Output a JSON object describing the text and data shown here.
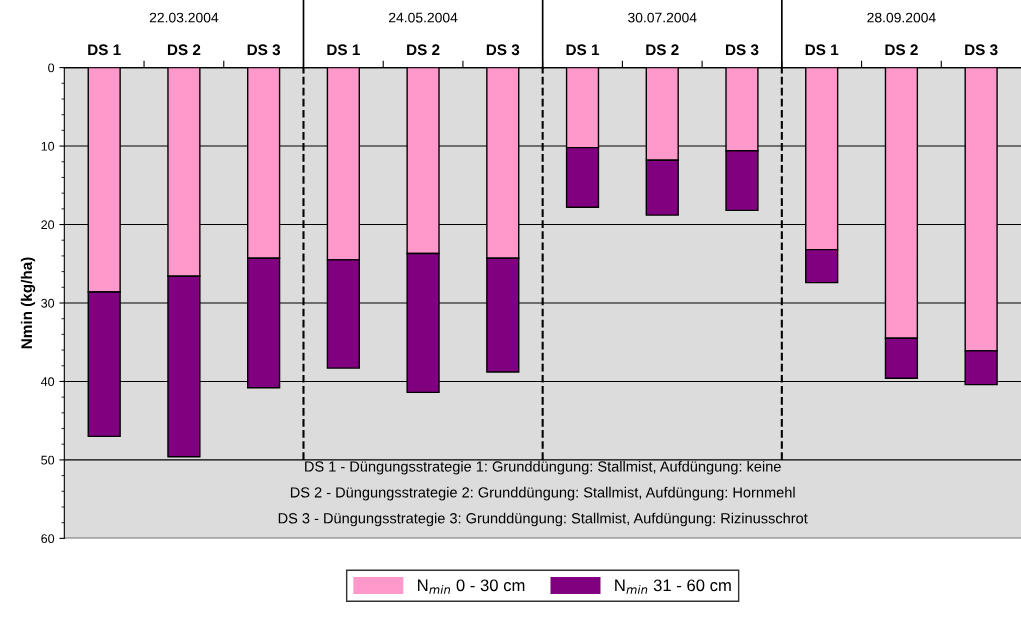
{
  "chart_data": {
    "type": "bar",
    "stacked": true,
    "ylabel": "Nmin (kg/ha)",
    "categories": [
      "DS 1",
      "DS 2",
      "DS 3",
      "DS 1",
      "DS 2",
      "DS 3",
      "DS 1",
      "DS 2",
      "DS 3",
      "DS 1",
      "DS 2",
      "DS 3"
    ],
    "series": [
      {
        "name": "N$_{min}$ 0 - 30 cm",
        "color": "#ff99cc",
        "values": [
          28.6,
          26.6,
          24.3,
          24.5,
          23.7,
          24.3,
          10.2,
          11.8,
          10.6,
          23.2,
          34.5,
          36.1
        ]
      },
      {
        "name": "N$_{min}$ 31 - 60 cm",
        "color": "#800080",
        "values": [
          18.4,
          23.0,
          16.5,
          13.8,
          17.7,
          14.5,
          7.6,
          7.0,
          7.6,
          4.2,
          5.1,
          4.3
        ]
      }
    ],
    "ylim": [
      60,
      0
    ],
    "yticks": [
      0,
      10,
      20,
      30,
      40,
      50,
      60
    ],
    "grid": "y",
    "legend": "bottom",
    "annotations": [
      "22.03.2004",
      "24.05.2004",
      "30.07.2004",
      "28.09.2004",
      "DS 1 - Düngungsstrategie 1: Grunddüngung: Stallmist, Aufdüngung: keine",
      "DS 2 - Düngungsstrategie 2: Grunddüngung: Stallmist, Aufdüngung: Hornmehl",
      "DS 3 - Düngungsstrategie 3: Grunddüngung: Stallmist, Aufdüngung: Rizinusschrot"
    ]
  }
}
